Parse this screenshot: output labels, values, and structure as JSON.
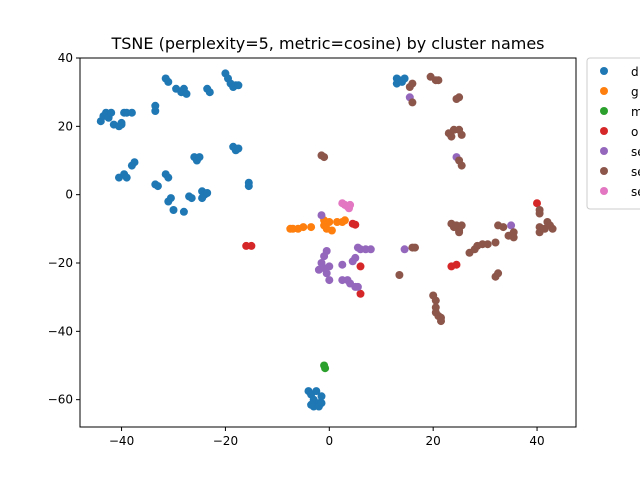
{
  "chart_data": {
    "type": "scatter",
    "title": "TSNE (perplexity=5, metric=cosine) by cluster names",
    "xlabel": "",
    "ylabel": "",
    "xlim": [
      -48,
      47.5
    ],
    "ylim": [
      -68,
      40
    ],
    "xticks": [
      -40,
      -20,
      0,
      20,
      40
    ],
    "yticks": [
      -60,
      -40,
      -20,
      0,
      20,
      40
    ],
    "xtick_labels": [
      "−40",
      "−20",
      "0",
      "20",
      "40"
    ],
    "ytick_labels": [
      "−60",
      "−40",
      "−20",
      "0",
      "20",
      "40"
    ],
    "grid": false,
    "legend_position": "outside-top-right",
    "series": [
      {
        "name": "d",
        "color": "#1f77b4",
        "points": [
          [
            -44,
            21.5
          ],
          [
            -43.5,
            23
          ],
          [
            -43,
            24
          ],
          [
            -42.5,
            22.5
          ],
          [
            -42,
            24
          ],
          [
            -41.5,
            20.5
          ],
          [
            -40.5,
            20
          ],
          [
            -40,
            21
          ],
          [
            -40,
            20.5
          ],
          [
            -39.5,
            24
          ],
          [
            -39,
            24
          ],
          [
            -38,
            24
          ],
          [
            -33.5,
            24.5
          ],
          [
            -33.5,
            26
          ],
          [
            -31.5,
            34
          ],
          [
            -31,
            33
          ],
          [
            -29.5,
            31
          ],
          [
            -28.5,
            30
          ],
          [
            -28,
            31
          ],
          [
            -27.5,
            29.5
          ],
          [
            -23.5,
            31
          ],
          [
            -23,
            30
          ],
          [
            -20,
            35.5
          ],
          [
            -19.5,
            34
          ],
          [
            -19,
            32.5
          ],
          [
            -18.5,
            31.5
          ],
          [
            -18,
            32
          ],
          [
            -17.5,
            32
          ],
          [
            -40.5,
            5
          ],
          [
            -39.5,
            6
          ],
          [
            -39,
            5
          ],
          [
            -38,
            8.5
          ],
          [
            -37.5,
            9.5
          ],
          [
            -33.5,
            3
          ],
          [
            -33,
            2.5
          ],
          [
            -31.5,
            6
          ],
          [
            -31,
            5
          ],
          [
            -31,
            -2
          ],
          [
            -30.5,
            -1
          ],
          [
            -30,
            -4.5
          ],
          [
            -28,
            -5
          ],
          [
            -27,
            -0.5
          ],
          [
            -26.5,
            -1
          ],
          [
            -26,
            11
          ],
          [
            -25.5,
            10
          ],
          [
            -25,
            11
          ],
          [
            -24.5,
            -1
          ],
          [
            -24.5,
            1
          ],
          [
            -24,
            0
          ],
          [
            -23.5,
            0.5
          ],
          [
            -18.5,
            14
          ],
          [
            -18,
            13
          ],
          [
            -17.5,
            13.5
          ],
          [
            -15.5,
            3.5
          ],
          [
            -15.5,
            2.5
          ],
          [
            13,
            34
          ],
          [
            13,
            32.5
          ],
          [
            13.5,
            33.5
          ],
          [
            14,
            33
          ],
          [
            14.5,
            34
          ],
          [
            -4,
            -57.5
          ],
          [
            -3.5,
            -58.5
          ],
          [
            -3,
            -60
          ],
          [
            -3,
            -62
          ],
          [
            -2.5,
            -57.5
          ],
          [
            -2,
            -61
          ],
          [
            -2,
            -62
          ],
          [
            -1.5,
            -59
          ],
          [
            -1.5,
            -61
          ],
          [
            -3.5,
            -61.5
          ]
        ]
      },
      {
        "name": "g",
        "color": "#ff7f0e",
        "points": [
          [
            -7.5,
            -10
          ],
          [
            -7,
            -10
          ],
          [
            -6,
            -10
          ],
          [
            -5,
            -9.5
          ],
          [
            -3.5,
            -9.5
          ],
          [
            -1,
            -7.5
          ],
          [
            -1,
            -9
          ],
          [
            -0.5,
            -10
          ],
          [
            0,
            -8
          ],
          [
            0.5,
            -10.5
          ],
          [
            1.5,
            -8
          ],
          [
            2.5,
            -8
          ],
          [
            3,
            -7.5
          ]
        ]
      },
      {
        "name": "m",
        "color": "#2ca02c",
        "points": [
          [
            -1,
            -50
          ],
          [
            -0.8,
            -50.8
          ]
        ]
      },
      {
        "name": "o",
        "color": "#d62728",
        "points": [
          [
            -16,
            -15
          ],
          [
            -15,
            -15
          ],
          [
            4.5,
            -8.5
          ],
          [
            5,
            -8.8
          ],
          [
            6,
            -21
          ],
          [
            6,
            -29
          ],
          [
            23.5,
            -21
          ],
          [
            24.5,
            -20.5
          ],
          [
            40,
            -2.5
          ]
        ]
      },
      {
        "name": "se",
        "color": "#9467bd",
        "points": [
          [
            -1.5,
            -6
          ],
          [
            -0.5,
            -16.5
          ],
          [
            -1,
            -18
          ],
          [
            -1.5,
            -20
          ],
          [
            -2,
            -22
          ],
          [
            -1,
            -21.5
          ],
          [
            0,
            -21
          ],
          [
            -0.5,
            -23
          ],
          [
            0,
            -25
          ],
          [
            2.5,
            -20.5
          ],
          [
            2.5,
            -25
          ],
          [
            3.5,
            -25
          ],
          [
            4,
            -26
          ],
          [
            4.5,
            -19.5
          ],
          [
            5,
            -18.5
          ],
          [
            5,
            -27
          ],
          [
            5.5,
            -27
          ],
          [
            5.5,
            -15.5
          ],
          [
            6,
            -16
          ],
          [
            7,
            -16
          ],
          [
            8,
            -16
          ],
          [
            14.5,
            -16
          ],
          [
            15.5,
            28.5
          ],
          [
            24.5,
            11
          ],
          [
            35,
            -9
          ]
        ]
      },
      {
        "name": "se",
        "color": "#8c564b",
        "points": [
          [
            -1.5,
            11.5
          ],
          [
            -1,
            11
          ],
          [
            16,
            32.5
          ],
          [
            15.5,
            31.5
          ],
          [
            16,
            27
          ],
          [
            19.5,
            34.5
          ],
          [
            20.5,
            33.5
          ],
          [
            21,
            33.5
          ],
          [
            24.5,
            28
          ],
          [
            25,
            28.5
          ],
          [
            23,
            18
          ],
          [
            23.5,
            17
          ],
          [
            24,
            19
          ],
          [
            25,
            19
          ],
          [
            25.5,
            17.5
          ],
          [
            25,
            10
          ],
          [
            25.5,
            8.5
          ],
          [
            13.5,
            -23.5
          ],
          [
            16,
            -15.5
          ],
          [
            16.5,
            -15.5
          ],
          [
            20,
            -29.5
          ],
          [
            20.5,
            -31
          ],
          [
            20.5,
            -33
          ],
          [
            20.5,
            -34.5
          ],
          [
            21,
            -35.5
          ],
          [
            21.5,
            -36
          ],
          [
            21.5,
            -37
          ],
          [
            23.5,
            -8.5
          ],
          [
            24,
            -9.5
          ],
          [
            24.5,
            -9
          ],
          [
            25,
            -10.5
          ],
          [
            25,
            -11
          ],
          [
            25.5,
            -9
          ],
          [
            27,
            -17
          ],
          [
            28,
            -16
          ],
          [
            28.5,
            -15
          ],
          [
            29.5,
            -14.5
          ],
          [
            30.5,
            -14.5
          ],
          [
            32,
            -14
          ],
          [
            32,
            -24
          ],
          [
            32.5,
            -23
          ],
          [
            32.5,
            -9
          ],
          [
            33.5,
            -9.5
          ],
          [
            34.5,
            -12
          ],
          [
            35.5,
            -12.5
          ],
          [
            35.5,
            -11
          ],
          [
            40.5,
            -4.5
          ],
          [
            40.5,
            -5.5
          ],
          [
            40.5,
            -9.5
          ],
          [
            40.5,
            -11
          ],
          [
            41.5,
            -10
          ],
          [
            42,
            -8
          ],
          [
            42.5,
            -9
          ],
          [
            43,
            -10
          ]
        ]
      },
      {
        "name": "se",
        "color": "#e377c2",
        "points": [
          [
            2.5,
            -2.5
          ],
          [
            3,
            -3
          ],
          [
            3.5,
            -3.5
          ],
          [
            3.8,
            -4
          ],
          [
            4,
            -3
          ]
        ]
      }
    ]
  }
}
